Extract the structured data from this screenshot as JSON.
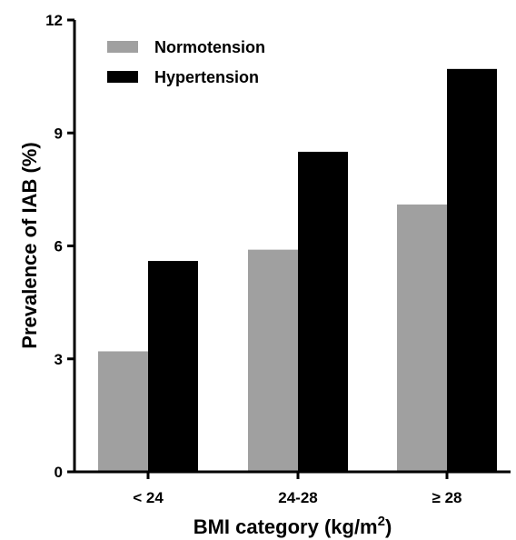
{
  "chart_data": {
    "type": "bar",
    "categories": [
      "< 24",
      "24-28",
      "≥ 28"
    ],
    "series": [
      {
        "name": "Normotension",
        "values": [
          3.2,
          5.9,
          7.1
        ],
        "color": "#a0a0a0"
      },
      {
        "name": "Hypertension",
        "values": [
          5.6,
          8.5,
          10.7
        ],
        "color": "#000000"
      }
    ],
    "xlabel": "BMI category (kg/m",
    "xlabel_superscript": "2",
    "xlabel_suffix": ")",
    "ylabel": "Prevalence of IAB (%)",
    "ylim": [
      0,
      12
    ],
    "yticks": [
      0,
      3,
      6,
      9,
      12
    ],
    "grid": false,
    "legend_position": "top-left"
  }
}
